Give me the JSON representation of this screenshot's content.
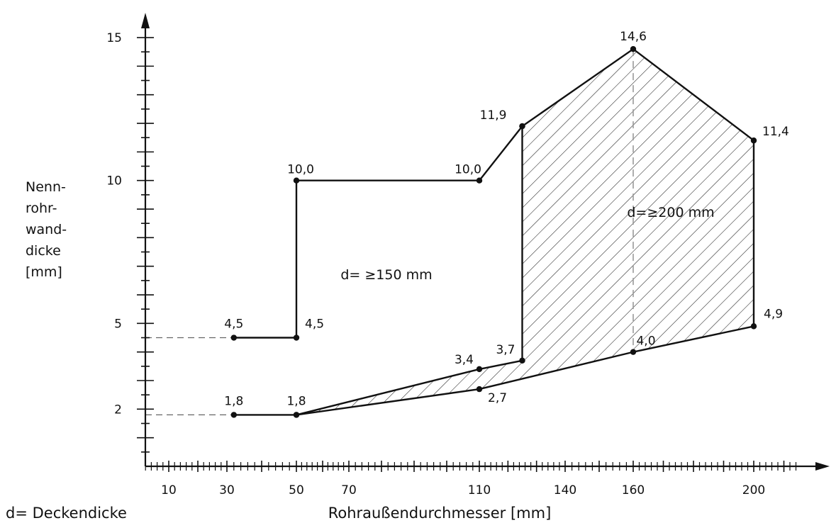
{
  "chart_data": {
    "type": "line",
    "xlabel": "Rohraußendurchmesser [mm]",
    "ylabel_lines": [
      "Nenn-",
      "rohr-",
      "wand-",
      "dicke",
      "[mm]"
    ],
    "footnote": "d= Deckendicke",
    "x_tick_labels": [
      "10",
      "30",
      "50",
      "70",
      "110",
      "140",
      "160",
      "200"
    ],
    "y_tick_labels": [
      "2",
      "5",
      "10",
      "15"
    ],
    "series": [
      {
        "region": "d≥150mm",
        "points": [
          {
            "x": 32,
            "y": 4.5,
            "label": "4,5"
          },
          {
            "x": 50,
            "y": 4.5,
            "label": "4,5"
          },
          {
            "x": 50,
            "y": 10.0,
            "label": "10,0"
          },
          {
            "x": 110,
            "y": 10.0,
            "label": "10,0"
          },
          {
            "x": 125,
            "y": 11.9,
            "label": "11,9"
          },
          {
            "x": 125,
            "y": 3.7,
            "label": "3,7"
          },
          {
            "x": 110,
            "y": 3.4,
            "label": "3,4"
          },
          {
            "x": 50,
            "y": 1.8,
            "label": "1,8"
          },
          {
            "x": 32,
            "y": 1.8,
            "label": "1,8"
          }
        ]
      },
      {
        "region": "d≥200mm",
        "points": [
          {
            "x": 125,
            "y": 11.9
          },
          {
            "x": 160,
            "y": 14.6,
            "label": "14,6"
          },
          {
            "x": 200,
            "y": 11.4,
            "label": "11,4"
          },
          {
            "x": 200,
            "y": 4.9,
            "label": "4,9"
          },
          {
            "x": 160,
            "y": 4.0,
            "label": "4,0"
          },
          {
            "x": 110,
            "y": 2.7,
            "label": "2,7"
          },
          {
            "x": 50,
            "y": 1.8
          }
        ]
      }
    ],
    "region_labels": [
      "d= ≥150 mm",
      "d=≥200 mm"
    ],
    "hatched": true
  }
}
